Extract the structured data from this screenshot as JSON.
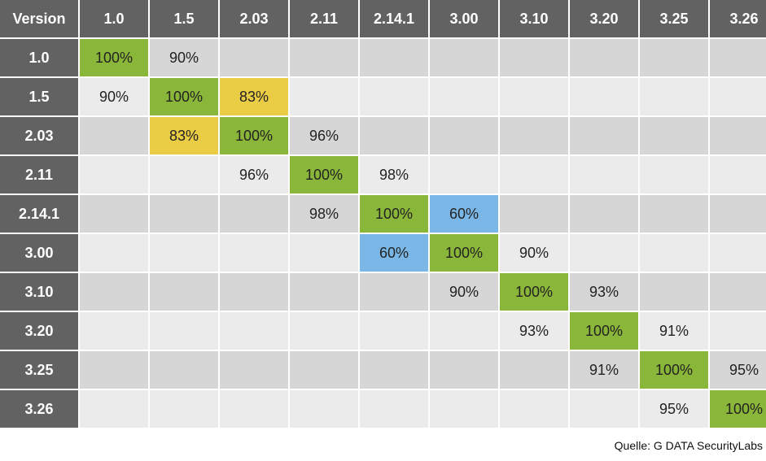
{
  "chart_data": {
    "type": "table",
    "corner_label": "Version",
    "versions": [
      "1.0",
      "1.5",
      "2.03",
      "2.11",
      "2.14.1",
      "3.00",
      "3.10",
      "3.20",
      "3.25",
      "3.26"
    ],
    "matrix": [
      [
        "100%",
        "90%",
        "",
        "",
        "",
        "",
        "",
        "",
        "",
        ""
      ],
      [
        "90%",
        "100%",
        "83%",
        "",
        "",
        "",
        "",
        "",
        "",
        ""
      ],
      [
        "",
        "83%",
        "100%",
        "96%",
        "",
        "",
        "",
        "",
        "",
        ""
      ],
      [
        "",
        "",
        "96%",
        "100%",
        "98%",
        "",
        "",
        "",
        "",
        ""
      ],
      [
        "",
        "",
        "",
        "98%",
        "100%",
        "60%",
        "",
        "",
        "",
        ""
      ],
      [
        "",
        "",
        "",
        "",
        "60%",
        "100%",
        "90%",
        "",
        "",
        ""
      ],
      [
        "",
        "",
        "",
        "",
        "",
        "90%",
        "100%",
        "93%",
        "",
        ""
      ],
      [
        "",
        "",
        "",
        "",
        "",
        "",
        "93%",
        "100%",
        "91%",
        ""
      ],
      [
        "",
        "",
        "",
        "",
        "",
        "",
        "",
        "91%",
        "100%",
        "95%"
      ],
      [
        "",
        "",
        "",
        "",
        "",
        "",
        "",
        "",
        "95%",
        "100%"
      ]
    ],
    "highlight_colors": {
      "100%": "#8ab639",
      "83%": "#ebcd45",
      "60%": "#7ab7e6"
    },
    "row_band_colors": [
      "#d6d6d6",
      "#ebebeb"
    ],
    "header_color": "#626262"
  },
  "footer": {
    "source": "Quelle: G DATA SecurityLabs"
  }
}
